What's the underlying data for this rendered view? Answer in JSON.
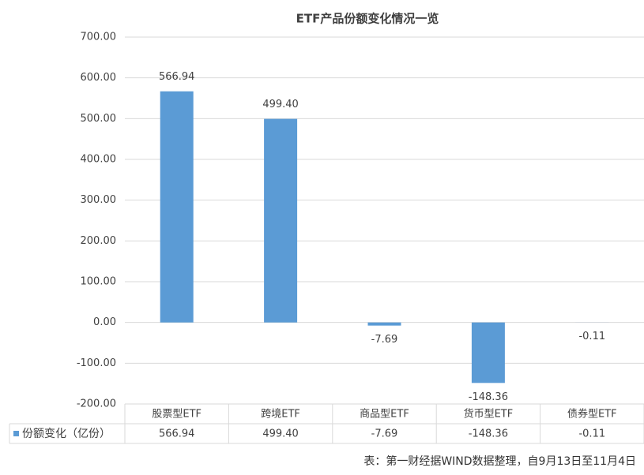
{
  "chart_data": {
    "type": "bar",
    "title": "ETF产品份额变化情况一览",
    "categories": [
      "股票型ETF",
      "跨境ETF",
      "商品型ETF",
      "货币型ETF",
      "债券型ETF"
    ],
    "series": [
      {
        "name": "份额变化（亿份）",
        "color": "#5b9bd5",
        "values": [
          566.94,
          499.4,
          -7.69,
          -148.36,
          -0.11
        ],
        "value_labels": [
          "566.94",
          "499.40",
          "-7.69",
          "-148.36",
          "-0.11"
        ]
      }
    ],
    "ylim": [
      -200,
      700
    ],
    "yticks": [
      {
        "value": -200,
        "label": "-200.00"
      },
      {
        "value": -100,
        "label": "-100.00"
      },
      {
        "value": 0,
        "label": "0.00"
      },
      {
        "value": 100,
        "label": "100.00"
      },
      {
        "value": 200,
        "label": "200.00"
      },
      {
        "value": 300,
        "label": "300.00"
      },
      {
        "value": 400,
        "label": "400.00"
      },
      {
        "value": 500,
        "label": "500.00"
      },
      {
        "value": 600,
        "label": "600.00"
      },
      {
        "value": 700,
        "label": "700.00"
      }
    ],
    "grid": true,
    "source": "表：第一财经据WIND数据整理，自9月13日至11月4日"
  }
}
